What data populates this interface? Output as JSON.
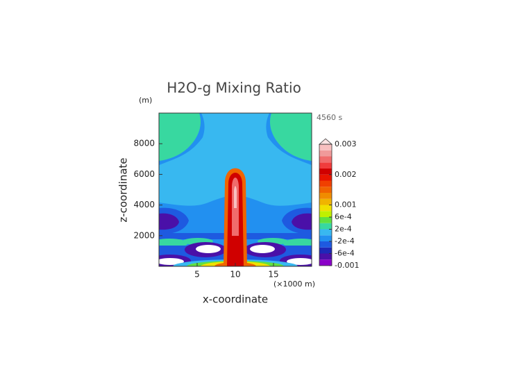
{
  "chart_data": {
    "type": "contour",
    "title": "H2O-g Mixing Ratio",
    "y_unit": "(m)",
    "x_unit": "(×1000 m)",
    "time_label": "4560 s",
    "x_label": "x-coordinate",
    "y_label": "z-coordinate",
    "xlim": [
      0,
      20
    ],
    "xticks": [
      5,
      10,
      15
    ],
    "ylim": [
      0,
      10000
    ],
    "yticks": [
      2000,
      4000,
      6000,
      8000
    ],
    "colorbar": {
      "levels": [
        -0.001,
        -0.0008,
        -0.0006,
        -0.0004,
        -0.0002,
        0,
        0.0002,
        0.0004,
        0.0006,
        0.0008,
        0.001,
        0.0012,
        0.0014,
        0.0016,
        0.0018,
        0.002,
        0.0022,
        0.0024,
        0.0026,
        0.0028,
        0.003
      ],
      "colors": [
        "#8a00c8",
        "#4a10a8",
        "#1e28b8",
        "#1e5ae0",
        "#2290f0",
        "#38b8f0",
        "#38d8a0",
        "#60e040",
        "#c0f000",
        "#f0e000",
        "#f0b400",
        "#f08c00",
        "#f06400",
        "#f04000",
        "#e81400",
        "#d00000",
        "#f03c3c",
        "#f06c6c",
        "#f09a9a",
        "#f8c0c0"
      ],
      "over_color": "#fde4e4",
      "ticks": [
        0.003,
        0.002,
        0.001,
        {
          "value": 0.0006,
          "label": "6e-4"
        },
        {
          "value": 0.0002,
          "label": "2e-4"
        },
        {
          "value": -0.0002,
          "label": "-2e-4"
        },
        {
          "value": -0.0006,
          "label": "-6e-4"
        },
        -0.001
      ]
    }
  }
}
